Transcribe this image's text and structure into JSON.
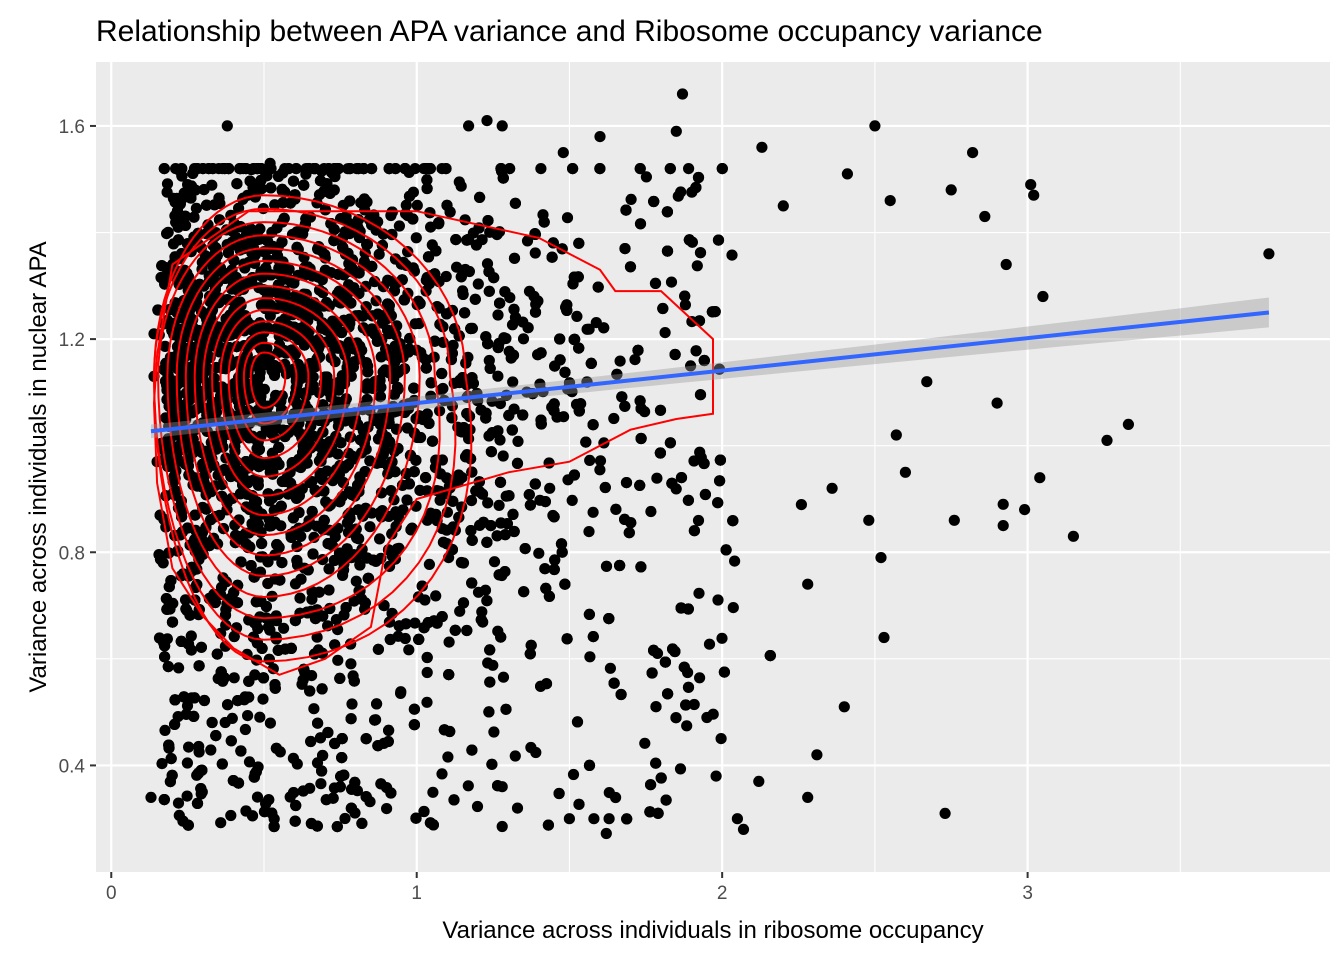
{
  "chart_data": {
    "type": "scatter",
    "title": "Relationship between APA variance and Ribosome occupancy variance",
    "xlabel": "Variance across individuals in ribosome occupancy",
    "ylabel": "Variance across individuals in nuclear APA",
    "xlim": [
      -0.05,
      3.99
    ],
    "ylim": [
      0.2,
      1.72
    ],
    "x_ticks": [
      {
        "value": 0,
        "label": "0"
      },
      {
        "value": 1,
        "label": "1"
      },
      {
        "value": 2,
        "label": "2"
      },
      {
        "value": 3,
        "label": "3"
      }
    ],
    "y_ticks": [
      {
        "value": 0.4,
        "label": "0.4"
      },
      {
        "value": 0.8,
        "label": "0.8"
      },
      {
        "value": 1.2,
        "label": "1.2"
      },
      {
        "value": 1.6,
        "label": "1.6"
      }
    ],
    "grid": true,
    "legend": "none",
    "colors": {
      "panel_background": "#ebebeb",
      "grid": "#ffffff",
      "points": "#000000",
      "regression_line": "#3366ff",
      "confidence_band": "#999999",
      "density_contours": "#ff0000"
    },
    "series": [
      {
        "type": "scatter",
        "points": [
          [
            1.87,
            1.66
          ],
          [
            0.38,
            1.6
          ],
          [
            1.23,
            1.61
          ],
          [
            1.17,
            1.6
          ],
          [
            1.28,
            1.6
          ],
          [
            2.5,
            1.6
          ],
          [
            1.85,
            1.59
          ],
          [
            1.6,
            1.58
          ],
          [
            2.13,
            1.56
          ],
          [
            2.82,
            1.55
          ],
          [
            0.52,
            1.53
          ],
          [
            1.48,
            1.55
          ],
          [
            1.03,
            1.52
          ],
          [
            2.41,
            1.51
          ],
          [
            3.01,
            1.49
          ],
          [
            0.25,
            1.49
          ],
          [
            3.02,
            1.47
          ],
          [
            2.75,
            1.48
          ],
          [
            2.55,
            1.46
          ],
          [
            2.2,
            1.45
          ],
          [
            2.93,
            1.34
          ],
          [
            3.05,
            1.28
          ],
          [
            3.79,
            1.36
          ],
          [
            3.33,
            1.04
          ],
          [
            3.26,
            1.01
          ],
          [
            3.15,
            0.83
          ],
          [
            3.04,
            0.94
          ],
          [
            2.99,
            0.88
          ],
          [
            2.92,
            0.89
          ],
          [
            2.92,
            0.85
          ],
          [
            2.76,
            0.86
          ],
          [
            2.73,
            0.31
          ],
          [
            2.53,
            0.64
          ],
          [
            2.52,
            0.79
          ],
          [
            2.4,
            0.51
          ],
          [
            2.31,
            0.42
          ],
          [
            2.28,
            0.34
          ],
          [
            2.12,
            0.37
          ],
          [
            2.07,
            0.28
          ],
          [
            2.05,
            0.3
          ],
          [
            1.98,
            0.38
          ],
          [
            1.95,
            0.49
          ],
          [
            1.63,
            0.3
          ],
          [
            1.58,
            0.3
          ],
          [
            1.5,
            0.3
          ],
          [
            1.28,
            0.36
          ],
          [
            1.33,
            0.32
          ],
          [
            0.13,
            0.34
          ],
          [
            0.17,
            0.78
          ],
          [
            0.15,
            0.97
          ],
          [
            0.14,
            1.21
          ],
          [
            0.14,
            1.13
          ],
          [
            2.86,
            1.43
          ],
          [
            2.9,
            1.08
          ],
          [
            2.67,
            1.12
          ],
          [
            2.6,
            0.95
          ],
          [
            2.57,
            1.02
          ],
          [
            2.48,
            0.86
          ],
          [
            2.36,
            0.92
          ],
          [
            2.28,
            0.74
          ]
        ],
        "additional_points_note": "about 5000 further points densely spread over x 0.15–2.0, y 0.27–1.5"
      },
      {
        "type": "line",
        "name": "linear fit",
        "x": [
          0.13,
          3.79
        ],
        "y": [
          1.027,
          1.25
        ],
        "band_halfwidth": [
          0.012,
          0.028
        ]
      },
      {
        "type": "contour",
        "name": "2d density",
        "center": [
          0.5,
          1.13
        ],
        "levels": 14
      }
    ]
  }
}
